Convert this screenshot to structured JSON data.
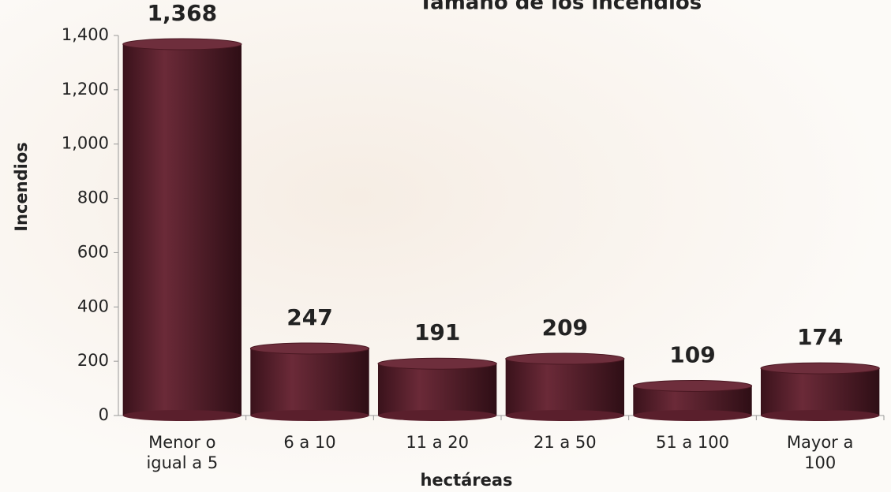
{
  "chart_data": {
    "type": "bar",
    "title": "Tamaño de los incendios",
    "categories": [
      "Menor o igual a 5",
      "6 a 10",
      "11 a 20",
      "21 a 50",
      "51 a 100",
      "Mayor a 100"
    ],
    "values": [
      1368,
      247,
      191,
      209,
      109,
      174
    ],
    "value_labels": [
      "1,368",
      "247",
      "191",
      "209",
      "109",
      "174"
    ],
    "color": "#5a1f2c",
    "x_label": "hectáreas",
    "y_label": "Incendios",
    "ylim": [
      0,
      1400
    ],
    "yticks": [
      0,
      200,
      400,
      600,
      800,
      {
        "value": 1000,
        "label": "1,000"
      },
      {
        "value": 1200,
        "label": "1,200"
      },
      {
        "value": 1400,
        "label": "1,400"
      }
    ]
  }
}
